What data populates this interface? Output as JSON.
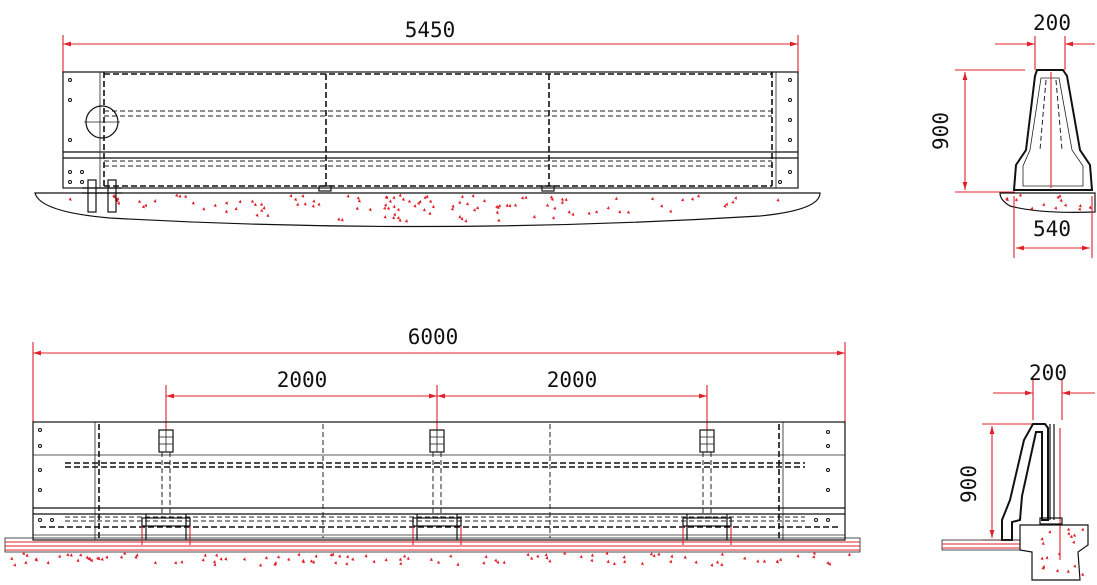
{
  "drawing": {
    "colors": {
      "line": "#111111",
      "dimension": "#e0202a",
      "background": "#ffffff"
    },
    "top_elevation": {
      "length_label": "5450"
    },
    "top_section": {
      "top_width_label": "200",
      "height_label": "900",
      "base_width_label": "540"
    },
    "bottom_elevation": {
      "length_label": "6000",
      "left_spacing_label": "2000",
      "right_spacing_label": "2000"
    },
    "bottom_section": {
      "top_width_label": "200",
      "height_label": "900"
    }
  }
}
